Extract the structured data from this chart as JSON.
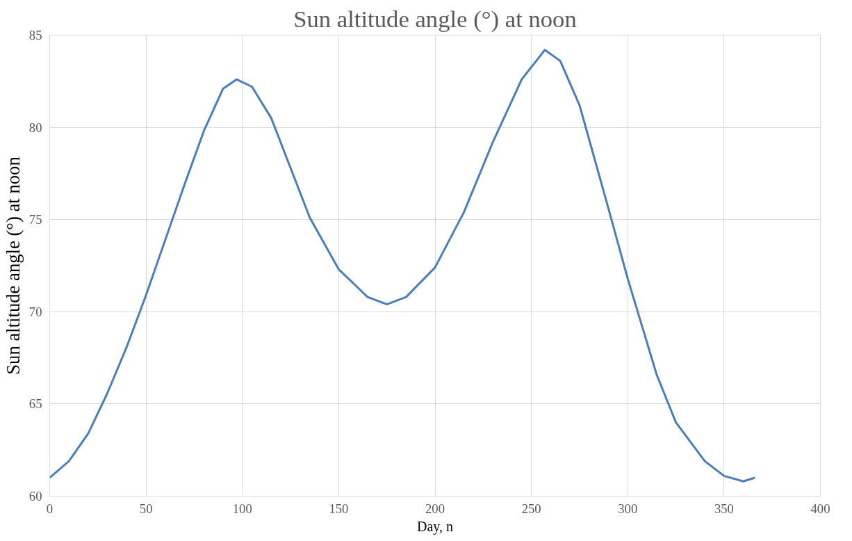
{
  "chart_data": {
    "type": "line",
    "title": "Sun altitude angle (°) at noon",
    "xlabel": "Day, n",
    "ylabel": "Sun altitude angle (°) at noon",
    "x": [
      0,
      10,
      20,
      30,
      40,
      50,
      60,
      70,
      80,
      90,
      97,
      105,
      115,
      125,
      135,
      150,
      165,
      175,
      185,
      200,
      215,
      230,
      245,
      257,
      265,
      275,
      290,
      300,
      315,
      325,
      340,
      350,
      360,
      366
    ],
    "series": [
      {
        "color": "#4a7ebb",
        "values": [
          61.0,
          61.9,
          63.4,
          65.6,
          68.1,
          70.9,
          73.9,
          76.9,
          79.8,
          82.1,
          82.6,
          82.2,
          80.5,
          77.8,
          75.1,
          72.3,
          70.8,
          70.4,
          70.8,
          72.4,
          75.4,
          79.2,
          82.6,
          84.2,
          83.6,
          81.2,
          75.6,
          71.8,
          66.6,
          64.0,
          61.9,
          61.1,
          60.8,
          61.0
        ]
      }
    ],
    "xlim": [
      0,
      400
    ],
    "ylim": [
      60,
      85
    ],
    "xticks": [
      0,
      50,
      100,
      150,
      200,
      250,
      300,
      350,
      400
    ],
    "yticks": [
      60,
      65,
      70,
      75,
      80,
      85
    ],
    "grid": true,
    "marker": "none",
    "line_style": "solid"
  }
}
